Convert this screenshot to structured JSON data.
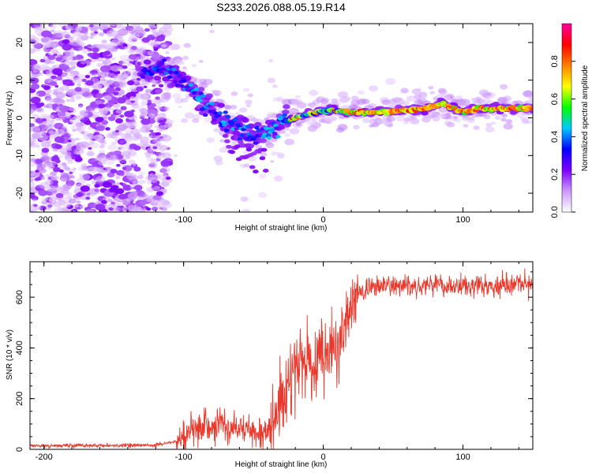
{
  "chart_data": [
    {
      "type": "heatmap",
      "title": "S233.2026.088.05.19.R14",
      "xlabel": "Height of straight line (km)",
      "ylabel": "Frequency (Hz)",
      "xlim": [
        -210,
        150
      ],
      "ylim": [
        -25,
        25
      ],
      "xticks": [
        -200,
        -100,
        0,
        100
      ],
      "yticks": [
        -20,
        -10,
        0,
        10,
        20
      ],
      "colorbar": {
        "label": "Normalized spectral amplitude",
        "range": [
          0,
          1
        ],
        "ticks": [
          "0.0",
          "0.2",
          "0.4",
          "0.6",
          "0.8"
        ],
        "colormap": [
          "#ffffff",
          "#cc99ff",
          "#7f00ff",
          "#0000ff",
          "#00c8ff",
          "#00ff00",
          "#ffff00",
          "#ff8000",
          "#ff0000",
          "#ff00a0"
        ]
      },
      "ridge": {
        "x": [
          -130,
          -120,
          -110,
          -100,
          -90,
          -80,
          -70,
          -60,
          -50,
          -40,
          -30,
          -20,
          -10,
          0,
          10,
          20,
          40,
          60,
          75,
          85,
          90,
          100,
          110,
          130,
          150
        ],
        "y": [
          12,
          13,
          12,
          10,
          6,
          2,
          -1,
          -3,
          -5,
          -4,
          -1,
          0,
          1,
          2,
          2,
          1.5,
          1.5,
          2,
          2.5,
          4,
          3,
          1.5,
          2.5,
          2.5,
          2.5
        ]
      }
    },
    {
      "type": "line",
      "xlabel": "Height of straight line (km)",
      "ylabel": "SNR (10 * v/v)",
      "xlim": [
        -210,
        150
      ],
      "ylim": [
        0,
        740
      ],
      "xticks": [
        -200,
        -100,
        0,
        100
      ],
      "yticks": [
        0,
        200,
        400,
        600
      ],
      "series": [
        {
          "name": "SNR",
          "color": "#e8392c",
          "x": [
            -210,
            -180,
            -150,
            -120,
            -105,
            -95,
            -85,
            -75,
            -65,
            -55,
            -45,
            -38,
            -33,
            -28,
            -22,
            -18,
            -12,
            -5,
            0,
            5,
            10,
            15,
            20,
            25,
            30,
            40,
            50,
            60,
            75,
            85,
            95,
            100,
            110,
            120,
            130,
            140,
            150
          ],
          "values": [
            15,
            15,
            15,
            18,
            30,
            70,
            90,
            95,
            85,
            80,
            75,
            70,
            120,
            200,
            300,
            340,
            350,
            360,
            390,
            400,
            430,
            470,
            560,
            610,
            630,
            645,
            645,
            645,
            650,
            645,
            640,
            640,
            640,
            645,
            645,
            645,
            645
          ]
        }
      ]
    }
  ]
}
